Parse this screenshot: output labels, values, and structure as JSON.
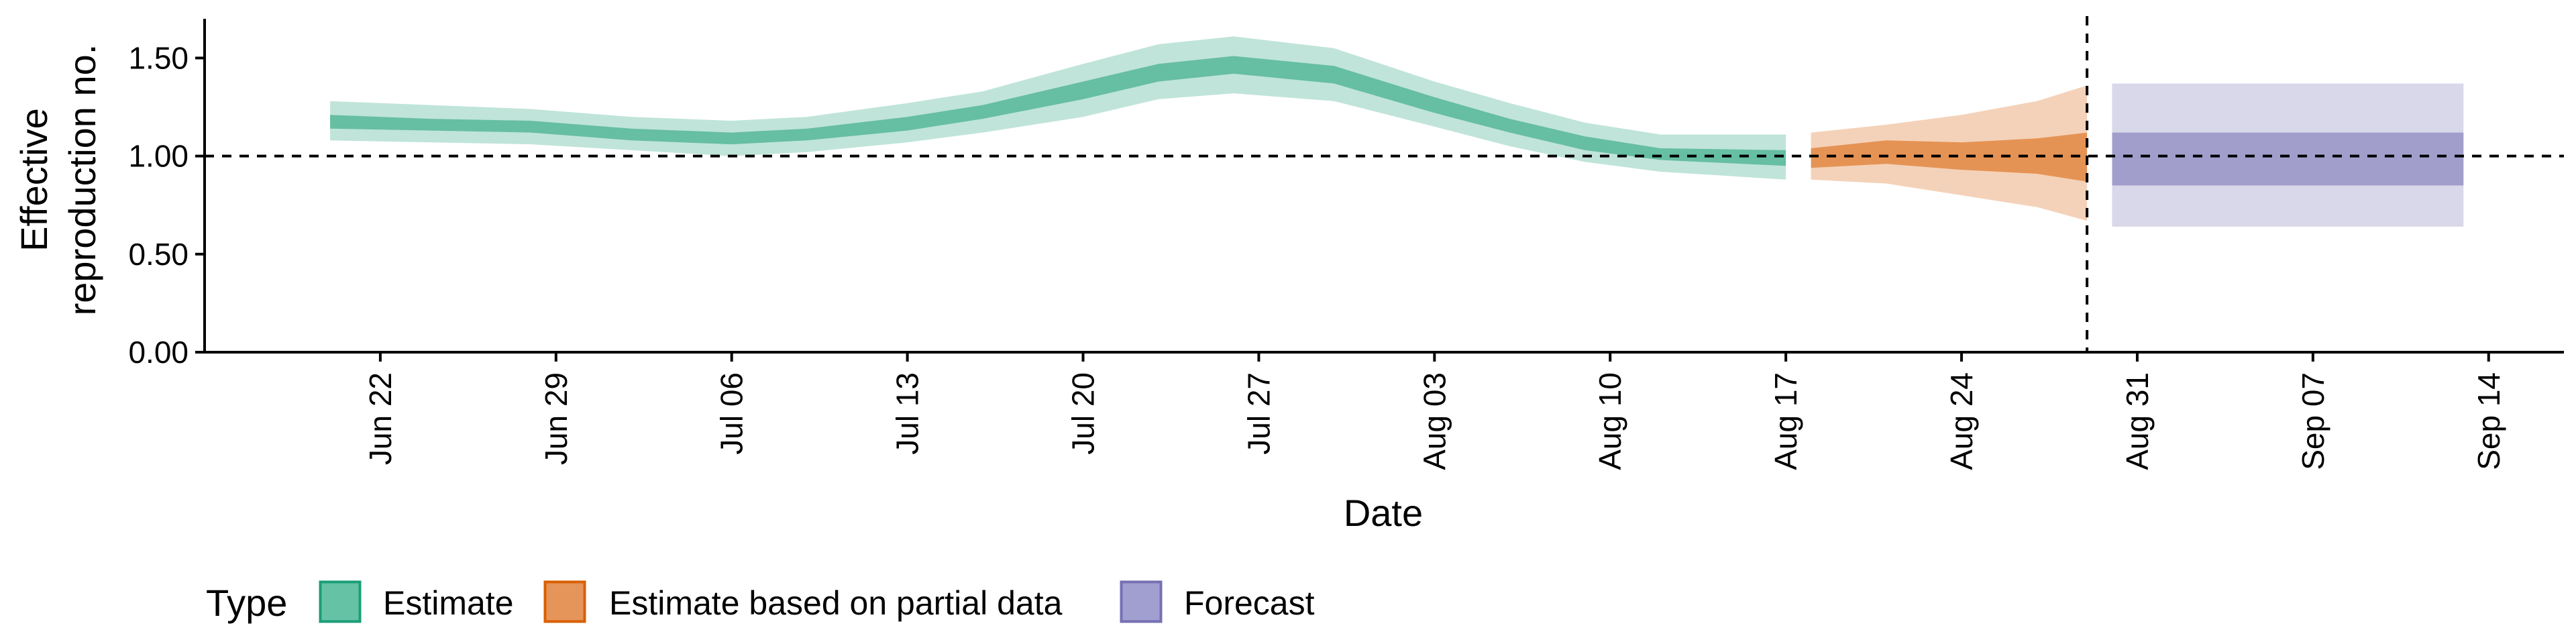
{
  "chart_data": {
    "type": "area",
    "xlabel": "Date",
    "ylabel": [
      "Effective",
      "reproduction no."
    ],
    "ylim": [
      0,
      1.7
    ],
    "y_ticks": [
      0.0,
      0.5,
      1.0,
      1.5
    ],
    "y_tick_labels": [
      "0.00",
      "0.50",
      "1.00",
      "1.50"
    ],
    "x_range": [
      "2020-06-15",
      "2020-09-17"
    ],
    "x_ticks": [
      "2020-06-22",
      "2020-06-29",
      "2020-07-06",
      "2020-07-13",
      "2020-07-20",
      "2020-07-27",
      "2020-08-03",
      "2020-08-10",
      "2020-08-17",
      "2020-08-24",
      "2020-08-31",
      "2020-09-07",
      "2020-09-14"
    ],
    "x_tick_labels": [
      "Jun 22",
      "Jun 29",
      "Jul 06",
      "Jul 13",
      "Jul 20",
      "Jul 27",
      "Aug 03",
      "Aug 10",
      "Aug 17",
      "Aug 24",
      "Aug 31",
      "Sep 07",
      "Sep 14"
    ],
    "reference_line_y": 1.0,
    "reference_line_date": "2020-08-29",
    "grid": false,
    "legend": {
      "title": "Type",
      "position": "bottom-left",
      "entries": [
        {
          "label": "Estimate",
          "fill": "#66c2a5",
          "stroke": "#1b9e77"
        },
        {
          "label": "Estimate based on partial data",
          "fill": "#e6955a",
          "stroke": "#d95f02"
        },
        {
          "label": "Forecast",
          "fill": "#a19fd0",
          "stroke": "#7570b3"
        }
      ]
    },
    "series": [
      {
        "name": "Estimate",
        "color": "#1b9e77",
        "points": [
          {
            "date": "2020-06-20",
            "lo90": 1.08,
            "lo50": 1.14,
            "hi50": 1.21,
            "hi90": 1.28
          },
          {
            "date": "2020-06-24",
            "lo90": 1.07,
            "lo50": 1.13,
            "hi50": 1.19,
            "hi90": 1.26
          },
          {
            "date": "2020-06-28",
            "lo90": 1.06,
            "lo50": 1.12,
            "hi50": 1.18,
            "hi90": 1.24
          },
          {
            "date": "2020-07-02",
            "lo90": 1.03,
            "lo50": 1.08,
            "hi50": 1.14,
            "hi90": 1.2
          },
          {
            "date": "2020-07-06",
            "lo90": 1.0,
            "lo50": 1.06,
            "hi50": 1.12,
            "hi90": 1.18
          },
          {
            "date": "2020-07-09",
            "lo90": 1.02,
            "lo50": 1.08,
            "hi50": 1.14,
            "hi90": 1.2
          },
          {
            "date": "2020-07-13",
            "lo90": 1.07,
            "lo50": 1.13,
            "hi50": 1.2,
            "hi90": 1.27
          },
          {
            "date": "2020-07-16",
            "lo90": 1.12,
            "lo50": 1.19,
            "hi50": 1.26,
            "hi90": 1.33
          },
          {
            "date": "2020-07-20",
            "lo90": 1.2,
            "lo50": 1.29,
            "hi50": 1.38,
            "hi90": 1.47
          },
          {
            "date": "2020-07-23",
            "lo90": 1.29,
            "lo50": 1.38,
            "hi50": 1.47,
            "hi90": 1.57
          },
          {
            "date": "2020-07-26",
            "lo90": 1.32,
            "lo50": 1.42,
            "hi50": 1.51,
            "hi90": 1.61
          },
          {
            "date": "2020-07-30",
            "lo90": 1.28,
            "lo50": 1.37,
            "hi50": 1.46,
            "hi90": 1.55
          },
          {
            "date": "2020-08-03",
            "lo90": 1.15,
            "lo50": 1.22,
            "hi50": 1.3,
            "hi90": 1.38
          },
          {
            "date": "2020-08-06",
            "lo90": 1.05,
            "lo50": 1.12,
            "hi50": 1.19,
            "hi90": 1.27
          },
          {
            "date": "2020-08-09",
            "lo90": 0.97,
            "lo50": 1.03,
            "hi50": 1.1,
            "hi90": 1.17
          },
          {
            "date": "2020-08-12",
            "lo90": 0.92,
            "lo50": 0.98,
            "hi50": 1.04,
            "hi90": 1.11
          },
          {
            "date": "2020-08-17",
            "lo90": 0.88,
            "lo50": 0.95,
            "hi50": 1.03,
            "hi90": 1.11
          }
        ]
      },
      {
        "name": "Estimate based on partial data",
        "color": "#d95f02",
        "points": [
          {
            "date": "2020-08-18",
            "lo90": 0.88,
            "lo50": 0.94,
            "hi50": 1.04,
            "hi90": 1.12
          },
          {
            "date": "2020-08-21",
            "lo90": 0.86,
            "lo50": 0.96,
            "hi50": 1.08,
            "hi90": 1.16
          },
          {
            "date": "2020-08-24",
            "lo90": 0.8,
            "lo50": 0.93,
            "hi50": 1.07,
            "hi90": 1.21
          },
          {
            "date": "2020-08-27",
            "lo90": 0.74,
            "lo50": 0.91,
            "hi50": 1.09,
            "hi90": 1.28
          },
          {
            "date": "2020-08-29",
            "lo90": 0.67,
            "lo50": 0.87,
            "hi50": 1.12,
            "hi90": 1.36
          }
        ]
      },
      {
        "name": "Forecast",
        "color": "#7570b3",
        "points": [
          {
            "date": "2020-08-30",
            "lo90": 0.64,
            "lo50": 0.85,
            "hi50": 1.12,
            "hi90": 1.37
          },
          {
            "date": "2020-09-13",
            "lo90": 0.64,
            "lo50": 0.85,
            "hi50": 1.12,
            "hi90": 1.37
          }
        ]
      }
    ]
  }
}
